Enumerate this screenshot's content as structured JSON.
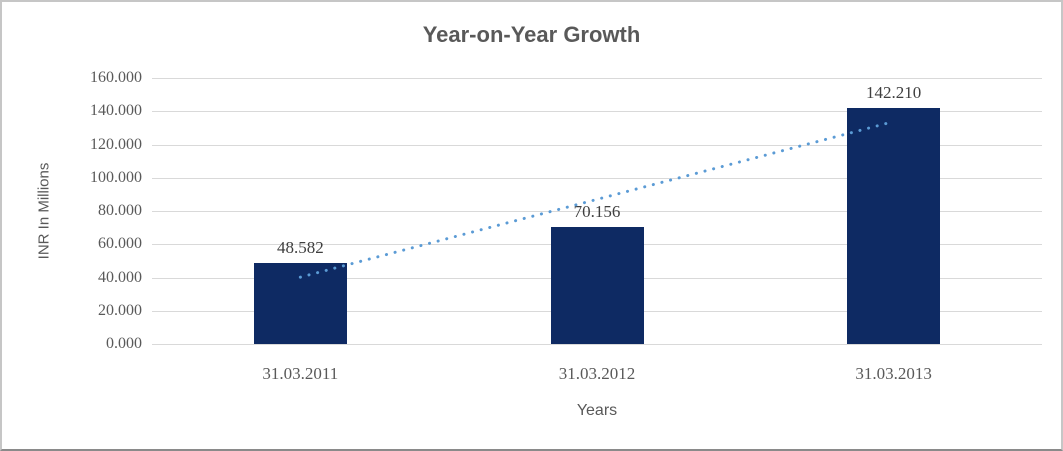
{
  "chart_data": {
    "type": "bar",
    "title": "Year-on-Year Growth",
    "xlabel": "Years",
    "ylabel": "INR In Millions",
    "categories": [
      "31.03.2011",
      "31.03.2012",
      "31.03.2013"
    ],
    "values": [
      48.582,
      70.156,
      142.21
    ],
    "value_labels": [
      "48.582",
      "70.156",
      "142.210"
    ],
    "ylim": [
      0,
      160
    ],
    "ytick_values": [
      0,
      20,
      40,
      60,
      80,
      100,
      120,
      140,
      160
    ],
    "ytick_labels": [
      "0.000",
      "20.000",
      "40.000",
      "60.000",
      "80.000",
      "100.000",
      "120.000",
      "140.000",
      "160.000"
    ],
    "grid": true,
    "legend_position": "none",
    "trendline": {
      "type": "linear",
      "style": "dotted",
      "start_value": 40.2,
      "end_value": 133.8
    },
    "colors": {
      "bar": "#0e2a63",
      "trendline": "#5b9bd5",
      "gridline": "#d9d9d9",
      "title_text": "#595959",
      "axis_text": "#595959",
      "data_label_text": "#3f3f3f",
      "frame_border": "#c6c6c6",
      "frame_border_bottom": "#8a8a8a",
      "background": "#ffffff"
    }
  }
}
